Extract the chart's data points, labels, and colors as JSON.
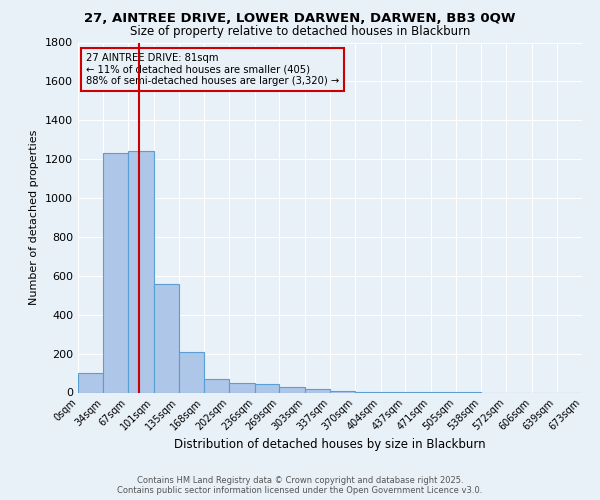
{
  "title": "27, AINTREE DRIVE, LOWER DARWEN, DARWEN, BB3 0QW",
  "subtitle": "Size of property relative to detached houses in Blackburn",
  "xlabel": "Distribution of detached houses by size in Blackburn",
  "ylabel": "Number of detached properties",
  "bin_edges": [
    0,
    34,
    67,
    101,
    135,
    168,
    202,
    236,
    269,
    303,
    337,
    370,
    404,
    437,
    471,
    505,
    538,
    572,
    606,
    639,
    673
  ],
  "bar_heights": [
    100,
    1230,
    1240,
    560,
    210,
    70,
    50,
    45,
    30,
    20,
    10,
    5,
    3,
    2,
    1,
    1,
    0,
    0,
    0,
    0
  ],
  "bar_color": "#aec6e8",
  "bar_edge_color": "#5a9fd4",
  "red_line_x": 81,
  "annotation_title": "27 AINTREE DRIVE: 81sqm",
  "annotation_line2": "← 11% of detached houses are smaller (405)",
  "annotation_line3": "88% of semi-detached houses are larger (3,320) →",
  "annotation_box_color": "#cc0000",
  "ylim": [
    0,
    1800
  ],
  "yticks": [
    0,
    200,
    400,
    600,
    800,
    1000,
    1200,
    1400,
    1600,
    1800
  ],
  "bg_color": "#e8f0f8",
  "grid_color": "#ffffff",
  "footer_line1": "Contains HM Land Registry data © Crown copyright and database right 2025.",
  "footer_line2": "Contains public sector information licensed under the Open Government Licence v3.0."
}
